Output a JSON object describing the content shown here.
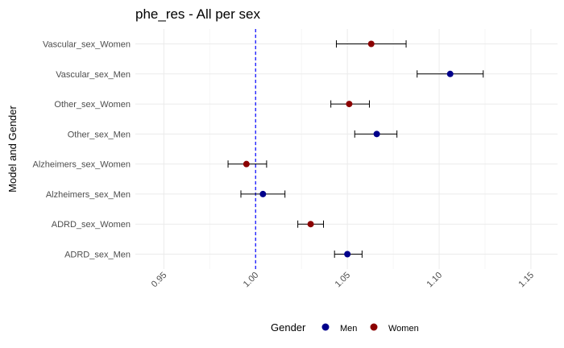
{
  "chart_data": {
    "type": "scatter",
    "subtype": "forest-plot-with-error-bars",
    "title": "phe_res - All per sex",
    "xlabel": "",
    "ylabel": "Model and Gender",
    "xlim": [
      0.9345,
      1.1645
    ],
    "x_ticks": [
      0.95,
      1.0,
      1.05,
      1.1,
      1.15
    ],
    "x_tick_labels": [
      "0.95",
      "1.00",
      "1.05",
      "1.10",
      "1.15"
    ],
    "categories": [
      "ADRD_sex_Men",
      "ADRD_sex_Women",
      "Alzheimers_sex_Men",
      "Alzheimers_sex_Women",
      "Other_sex_Men",
      "Other_sex_Women",
      "Vascular_sex_Men",
      "Vascular_sex_Women"
    ],
    "points": [
      {
        "label": "ADRD_sex_Men",
        "gender": "Men",
        "estimate": 1.05,
        "lower": 1.043,
        "upper": 1.058
      },
      {
        "label": "ADRD_sex_Women",
        "gender": "Women",
        "estimate": 1.03,
        "lower": 1.023,
        "upper": 1.037
      },
      {
        "label": "Alzheimers_sex_Men",
        "gender": "Men",
        "estimate": 1.004,
        "lower": 0.992,
        "upper": 1.016
      },
      {
        "label": "Alzheimers_sex_Women",
        "gender": "Women",
        "estimate": 0.995,
        "lower": 0.985,
        "upper": 1.006
      },
      {
        "label": "Other_sex_Men",
        "gender": "Men",
        "estimate": 1.066,
        "lower": 1.054,
        "upper": 1.077
      },
      {
        "label": "Other_sex_Women",
        "gender": "Women",
        "estimate": 1.051,
        "lower": 1.041,
        "upper": 1.062
      },
      {
        "label": "Vascular_sex_Men",
        "gender": "Men",
        "estimate": 1.106,
        "lower": 1.088,
        "upper": 1.124
      },
      {
        "label": "Vascular_sex_Women",
        "gender": "Women",
        "estimate": 1.063,
        "lower": 1.044,
        "upper": 1.082
      }
    ],
    "reference_line": {
      "x": 1.0,
      "color": "#0000ff",
      "style": "dashed"
    },
    "legend": {
      "title": "Gender",
      "position": "bottom",
      "entries": [
        {
          "name": "Men",
          "color": "#00008b"
        },
        {
          "name": "Women",
          "color": "#8b0000"
        }
      ]
    },
    "colors": {
      "Men": "#00008b",
      "Women": "#8b0000"
    },
    "grid": true
  }
}
